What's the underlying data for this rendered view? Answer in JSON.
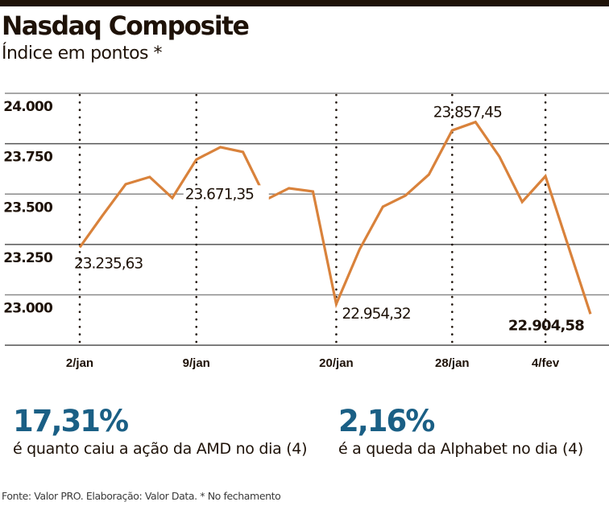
{
  "header": {
    "title": "Nasdaq Composite",
    "subtitle": "Índice em pontos *"
  },
  "chart_data": {
    "type": "line",
    "title": "Nasdaq Composite",
    "ylabel": "Índice em pontos *",
    "xlabel": "",
    "ylim": [
      22750,
      24000
    ],
    "yticks": [
      24000,
      23750,
      23500,
      23250,
      23000
    ],
    "ytick_labels": [
      "24.000",
      "23.750",
      "23.500",
      "23.250",
      "23.000"
    ],
    "x_tick_indices": [
      0,
      5,
      11,
      16,
      20
    ],
    "x_tick_labels": [
      "2/jan",
      "9/jan",
      "20/jan",
      "28/jan",
      "4/fev"
    ],
    "grid": "horizontal",
    "line_color": "#d9823b",
    "series": [
      {
        "name": "Nasdaq Composite",
        "values": [
          23235.63,
          23393,
          23549,
          23585,
          23481,
          23671.35,
          23733,
          23709,
          23473,
          23529,
          23513,
          22954.32,
          23226,
          23437,
          23493,
          23597,
          23816,
          23857.45,
          23685,
          23461,
          23589,
          22904.58
        ]
      }
    ],
    "x_positions": [
      0,
      0.97,
      1.97,
      3.0,
      3.97,
      5.0,
      6.03,
      7.0,
      8.0,
      8.97,
      10.0,
      11.0,
      12.0,
      13.0,
      13.97,
      14.97,
      15.97,
      16.97,
      18.0,
      18.97,
      19.97,
      21.9
    ],
    "annotations": [
      {
        "index": 0,
        "label": "23.235,63",
        "bold": false
      },
      {
        "index": 5,
        "label": "23.671,35",
        "bold": false
      },
      {
        "index": 11,
        "label": "22.954,32",
        "bold": false
      },
      {
        "index": 17,
        "label": "23.857,45",
        "bold": false
      },
      {
        "index": 21,
        "label": "22.904,58",
        "bold": true
      }
    ]
  },
  "stats": [
    {
      "value": "17,31%",
      "description": "é quanto caiu a ação da AMD no dia (4)"
    },
    {
      "value": "2,16%",
      "description": "é a queda da Alphabet no dia (4)"
    }
  ],
  "footer": {
    "source": "Fonte: Valor PRO. Elaboração: Valor Data. * No fechamento"
  }
}
